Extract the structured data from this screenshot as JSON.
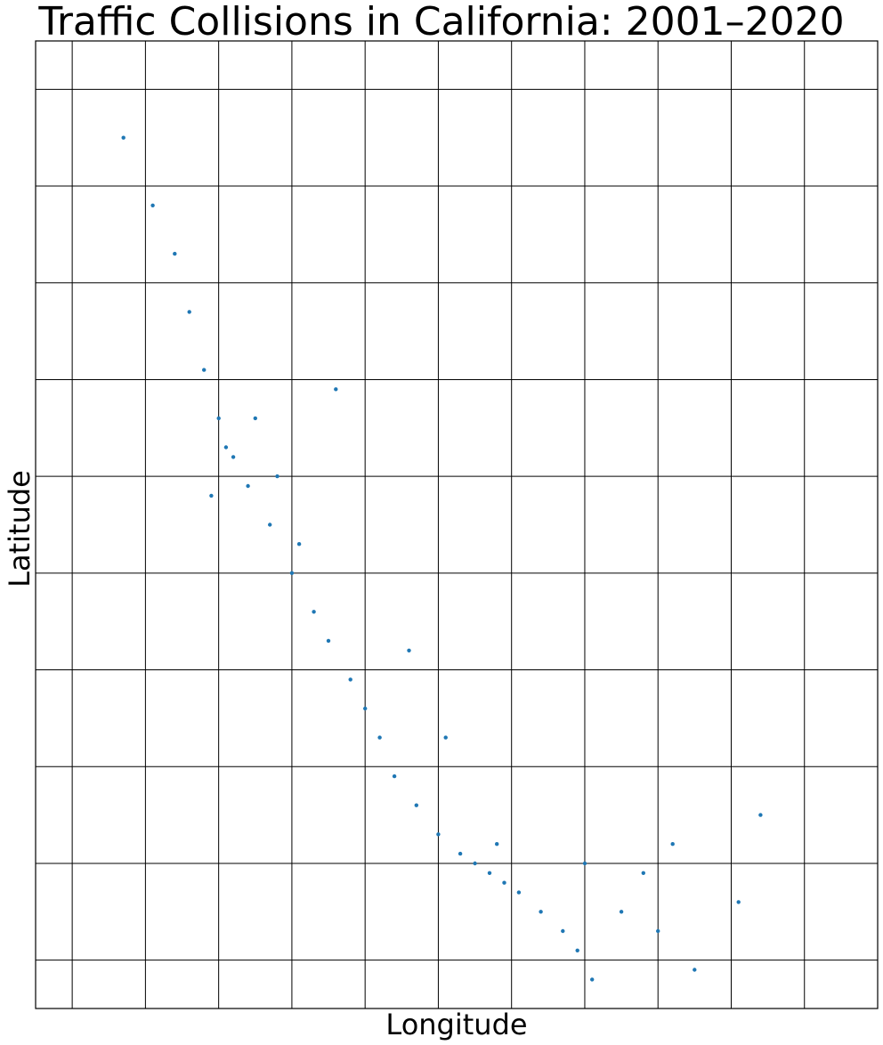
{
  "chart_data": {
    "type": "scatter",
    "title": "Traffic Collisions in California: 2001–2020",
    "xlabel": "Longitude",
    "ylabel": "Latitude",
    "xlim": [
      -124.5,
      -113.0
    ],
    "ylim": [
      32.5,
      42.5
    ],
    "grid": true,
    "x_ticks_labeled": false,
    "y_ticks_labeled": false,
    "marker_color": "#1f77b4",
    "series": [
      {
        "x": [
          -123.3,
          -122.9,
          -122.6,
          -122.4,
          -122.2,
          -122.0,
          -121.8,
          -121.6,
          -121.3,
          -121.0,
          -120.7,
          -120.5,
          -120.2,
          -120.0,
          -119.8,
          -119.6,
          -119.3,
          -119.0,
          -118.7,
          -118.5,
          -118.3,
          -118.1,
          -117.9,
          -117.6,
          -117.3,
          -117.1,
          -116.9,
          -116.5,
          -116.2,
          -115.8,
          -115.5,
          -114.9,
          -114.6,
          -121.9,
          -122.1,
          -121.5,
          -121.2,
          -120.9,
          -118.2,
          -117.0,
          -116.0,
          -118.9,
          -119.4,
          -120.4
        ],
        "y": [
          41.5,
          40.8,
          40.3,
          39.7,
          39.1,
          38.6,
          38.2,
          37.9,
          37.5,
          37.0,
          36.6,
          36.3,
          35.9,
          35.6,
          35.3,
          34.9,
          34.6,
          34.3,
          34.1,
          34.0,
          33.9,
          33.8,
          33.7,
          33.5,
          33.3,
          33.1,
          32.8,
          33.5,
          33.9,
          34.2,
          32.9,
          33.6,
          34.5,
          38.3,
          37.8,
          38.6,
          38.0,
          37.3,
          34.2,
          34.0,
          33.3,
          35.3,
          36.2,
          38.9
        ]
      }
    ]
  }
}
